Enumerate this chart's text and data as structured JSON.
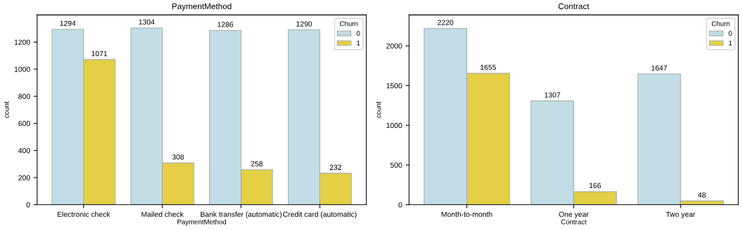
{
  "chart_data": [
    {
      "type": "bar",
      "title": "PaymentMethod",
      "xlabel": "PaymentMethod",
      "ylabel": "count",
      "categories": [
        "Electronic check",
        "Mailed check",
        "Bank transfer (automatic)",
        "Credit card (automatic)"
      ],
      "series": [
        {
          "name": "0",
          "color": "#c2dde6",
          "values": [
            1294,
            1304,
            1286,
            1290
          ]
        },
        {
          "name": "1",
          "color": "#e4cf45",
          "values": [
            1071,
            308,
            258,
            232
          ]
        }
      ],
      "ylim": [
        0,
        1400
      ],
      "yticks": [
        0,
        200,
        400,
        600,
        800,
        1000,
        1200
      ],
      "data_labels": true,
      "legend": "top right",
      "legend_title": "Churn",
      "grid": false
    },
    {
      "type": "bar",
      "title": "Contract",
      "xlabel": "Contract",
      "ylabel": "count",
      "categories": [
        "Month-to-month",
        "One year",
        "Two year"
      ],
      "series": [
        {
          "name": "0",
          "color": "#c2dde6",
          "values": [
            2220,
            1307,
            1647
          ]
        },
        {
          "name": "1",
          "color": "#e4cf45",
          "values": [
            1655,
            166,
            48
          ]
        }
      ],
      "ylim": [
        0,
        2390
      ],
      "yticks": [
        0,
        500,
        1000,
        1500,
        2000
      ],
      "data_labels": true,
      "legend": "top right",
      "legend_title": "Churn",
      "grid": false
    }
  ]
}
